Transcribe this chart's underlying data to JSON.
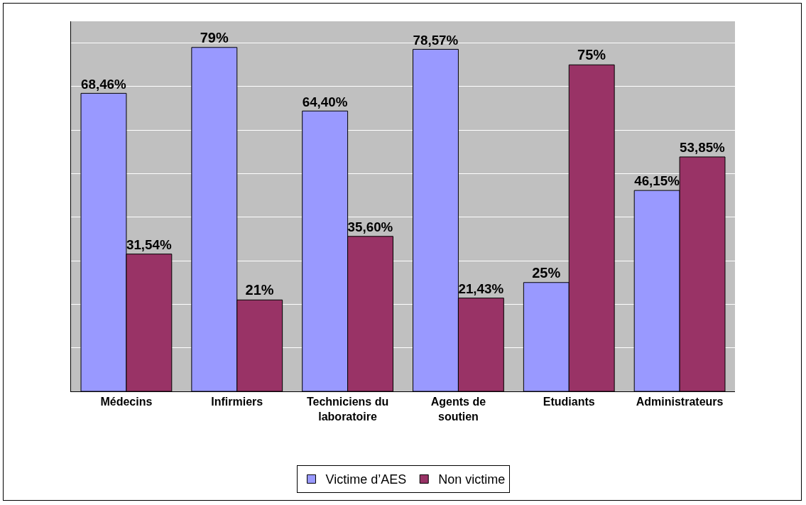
{
  "chart_data": {
    "type": "bar",
    "categories": [
      "Médecins",
      "Infirmiers",
      "Techniciens du laboratoire",
      "Agents de soutien",
      "Etudiants",
      "Administrateurs"
    ],
    "series": [
      {
        "name": "Victime d’AES",
        "color": "#9999ff",
        "values": [
          68.46,
          79,
          64.4,
          78.57,
          25,
          46.15
        ],
        "value_labels": [
          "68,46%",
          "79%",
          "64,40%",
          "78,57%",
          "25%",
          "46,15%"
        ]
      },
      {
        "name": "Non victime",
        "color": "#993366",
        "values": [
          31.54,
          21,
          35.6,
          21.43,
          75,
          53.85
        ],
        "value_labels": [
          "31,54%",
          "21%",
          "35,60%",
          "21,43%",
          "75%",
          "53,85%"
        ]
      }
    ],
    "ylim": [
      0,
      85
    ],
    "yticks": [
      {
        "value": 0,
        "label": null
      },
      {
        "value": 10,
        "label": null
      },
      {
        "value": 20,
        "label": null
      },
      {
        "value": 30,
        "label": null
      },
      {
        "value": 40,
        "label": null
      },
      {
        "value": 50,
        "label": null
      },
      {
        "value": 60,
        "label": null
      },
      {
        "value": 70,
        "label": null
      },
      {
        "value": 80,
        "label": null
      }
    ],
    "grid": "y",
    "legend": "bottom",
    "tick_labels": "x"
  }
}
